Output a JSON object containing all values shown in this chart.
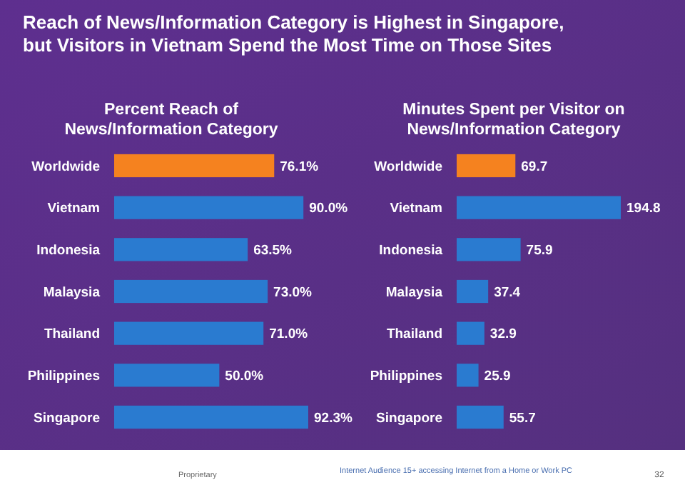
{
  "chart_data": [
    {
      "type": "bar",
      "orientation": "horizontal",
      "title": "Reach of News/Information Category is Highest in Singapore, but Visitors in Vietnam Spend the Most Time on Those Sites",
      "subtitle": "Percent Reach of News/Information Category",
      "categories": [
        "Worldwide",
        "Vietnam",
        "Indonesia",
        "Malaysia",
        "Thailand",
        "Philippines",
        "Singapore"
      ],
      "values": [
        76.1,
        90.0,
        63.5,
        73.0,
        71.0,
        50.0,
        92.3
      ],
      "value_labels": [
        "76.1%",
        "90.0%",
        "63.5%",
        "73.0%",
        "71.0%",
        "50.0%",
        "92.3%"
      ],
      "colors": [
        "#f5821f",
        "#2a7bd0",
        "#2a7bd0",
        "#2a7bd0",
        "#2a7bd0",
        "#2a7bd0",
        "#2a7bd0"
      ]
    },
    {
      "type": "bar",
      "orientation": "horizontal",
      "title": "Minutes Spent per Visitor on News/Information Category",
      "categories": [
        "Worldwide",
        "Vietnam",
        "Indonesia",
        "Malaysia",
        "Thailand",
        "Philippines",
        "Singapore"
      ],
      "values": [
        69.7,
        194.8,
        75.9,
        37.4,
        32.9,
        25.9,
        55.7
      ],
      "data_labels": true,
      "colors": [
        "#f5821f",
        "#2a7bd0",
        "#2a7bd0",
        "#2a7bd0",
        "#2a7bd0",
        "#2a7bd0",
        "#2a7bd0"
      ],
      "annotations": [
        "Proprietary",
        "Internet Audience 15+ accessing Internet from a Home or Work PC",
        "32"
      ]
    }
  ]
}
